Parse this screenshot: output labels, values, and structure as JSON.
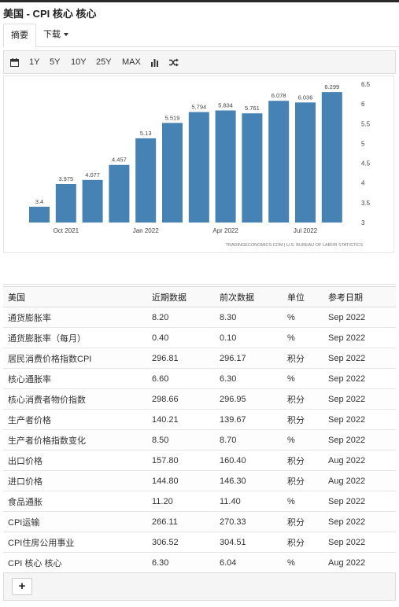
{
  "page": {
    "title": "美国 - CPI 核心 核心"
  },
  "tabs": [
    {
      "label": "摘要"
    },
    {
      "label": "下载"
    }
  ],
  "toolbar": {
    "icons": {
      "calendar": "calendar-icon",
      "bar_chart": "bar-chart-icon",
      "shuffle": "shuffle-icon"
    },
    "ranges": [
      "1Y",
      "5Y",
      "10Y",
      "25Y",
      "MAX"
    ]
  },
  "chart_data": {
    "type": "bar",
    "bar_color": "#4682b4",
    "values": [
      3.4,
      3.975,
      4.077,
      4.457,
      5.13,
      5.519,
      5.794,
      5.834,
      5.761,
      6.078,
      6.036,
      6.299
    ],
    "value_labels": [
      "3.4",
      "3.975",
      "4.077",
      "4.457",
      "5.13",
      "5.519",
      "5.794",
      "5.834",
      "5.761",
      "6.078",
      "6.036",
      "6.299"
    ],
    "x_tick_labels": [
      {
        "index": 1,
        "label": "Oct 2021"
      },
      {
        "index": 4,
        "label": "Jan 2022"
      },
      {
        "index": 7,
        "label": "Apr 2022"
      },
      {
        "index": 10,
        "label": "Jul 2022"
      }
    ],
    "y_ticks": [
      "6.5",
      "6",
      "5.5",
      "5",
      "4.5",
      "4",
      "3.5",
      "3"
    ],
    "ylim": [
      3,
      6.5
    ],
    "source": "TRADINGECONOMICS.COM | U.S. BUREAU OF LABOR STATISTICS"
  },
  "table": {
    "headers": [
      "美国",
      "近期数据",
      "前次数据",
      "单位",
      "参考日期"
    ],
    "rows": [
      [
        "通货膨胀率",
        "8.20",
        "8.30",
        "%",
        "Sep 2022"
      ],
      [
        "通货膨胀率（每月）",
        "0.40",
        "0.10",
        "%",
        "Sep 2022"
      ],
      [
        "居民消费价格指数CPI",
        "296.81",
        "296.17",
        "积分",
        "Sep 2022"
      ],
      [
        "核心通胀率",
        "6.60",
        "6.30",
        "%",
        "Sep 2022"
      ],
      [
        "核心消费者物价指数",
        "298.66",
        "296.95",
        "积分",
        "Sep 2022"
      ],
      [
        "生产者价格",
        "140.21",
        "139.67",
        "积分",
        "Sep 2022"
      ],
      [
        "生产者价格指数变化",
        "8.50",
        "8.70",
        "%",
        "Sep 2022"
      ],
      [
        "出口价格",
        "157.80",
        "160.40",
        "积分",
        "Aug 2022"
      ],
      [
        "进口价格",
        "144.80",
        "146.30",
        "积分",
        "Aug 2022"
      ],
      [
        "食品通胀",
        "11.20",
        "11.40",
        "%",
        "Sep 2022"
      ],
      [
        "CPI运输",
        "266.11",
        "270.33",
        "积分",
        "Sep 2022"
      ],
      [
        "CPI住房公用事业",
        "306.52",
        "304.51",
        "积分",
        "Sep 2022"
      ],
      [
        "CPI 核心 核心",
        "6.30",
        "6.04",
        "%",
        "Aug 2022"
      ]
    ]
  },
  "add_button": {
    "label": "+"
  }
}
